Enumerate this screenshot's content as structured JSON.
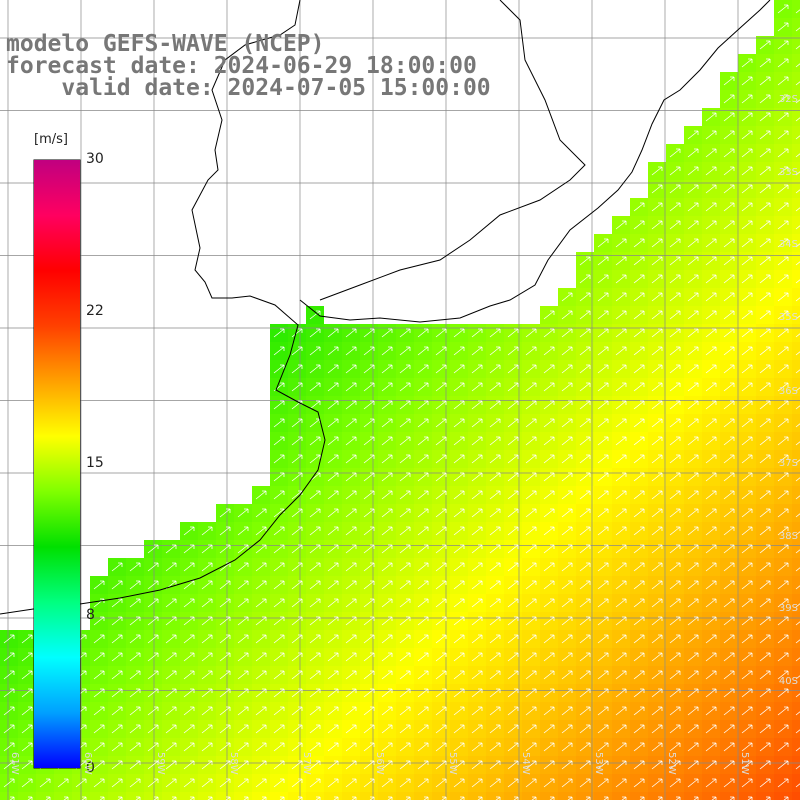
{
  "title": {
    "model": "modelo GEFS-WAVE (NCEP)",
    "forecast": "forecast date: 2024-06-29 18:00:00",
    "valid": "    valid date: 2024-07-05 15:00:00"
  },
  "colorbar": {
    "unit": "[m/s]",
    "ticks": [
      {
        "label": "30",
        "value": 30
      },
      {
        "label": "22",
        "value": 22
      },
      {
        "label": "15",
        "value": 15
      },
      {
        "label": "8",
        "value": 8
      },
      {
        "label": "0",
        "value": 0
      }
    ],
    "colors": [
      "#0000ff",
      "#00a0ff",
      "#00ffff",
      "#00ff80",
      "#00e000",
      "#80ff00",
      "#ffff00",
      "#ffa000",
      "#ff4000",
      "#ff0000",
      "#ff0060",
      "#c00080"
    ]
  },
  "lat_labels": [
    "32S",
    "33S",
    "34S",
    "35S",
    "36S",
    "37S",
    "38S",
    "39S",
    "40S"
  ],
  "lon_labels": [
    "61W",
    "60W",
    "59W",
    "58W",
    "57W",
    "56W",
    "55W",
    "54W",
    "53W",
    "52W",
    "51W"
  ],
  "colors": {
    "land": "#ffffff",
    "grid": "#888888",
    "coast": "#000000",
    "arrow": "#ffffff"
  }
}
